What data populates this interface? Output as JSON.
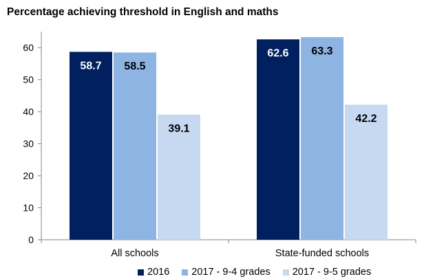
{
  "chart_data": {
    "type": "bar",
    "title": "Percentage achieving threshold in English and maths",
    "xlabel": "",
    "ylabel": "",
    "categories": [
      "All schools",
      "State-funded schools"
    ],
    "series": [
      {
        "name": "2016",
        "values": [
          58.7,
          62.6
        ],
        "color": "#002060",
        "label_color": "#ffffff"
      },
      {
        "name": "2017 - 9-4 grades",
        "values": [
          58.5,
          63.3
        ],
        "color": "#8eb4e3",
        "label_color": "#000000"
      },
      {
        "name": "2017 - 9-5 grades",
        "values": [
          39.1,
          42.2
        ],
        "color": "#c6d9f1",
        "label_color": "#000000"
      }
    ],
    "ylim": [
      0,
      65
    ],
    "yticks": [
      0,
      10,
      20,
      30,
      40,
      50,
      60
    ],
    "grid": false,
    "legend": "bottom",
    "data_labels": true
  }
}
